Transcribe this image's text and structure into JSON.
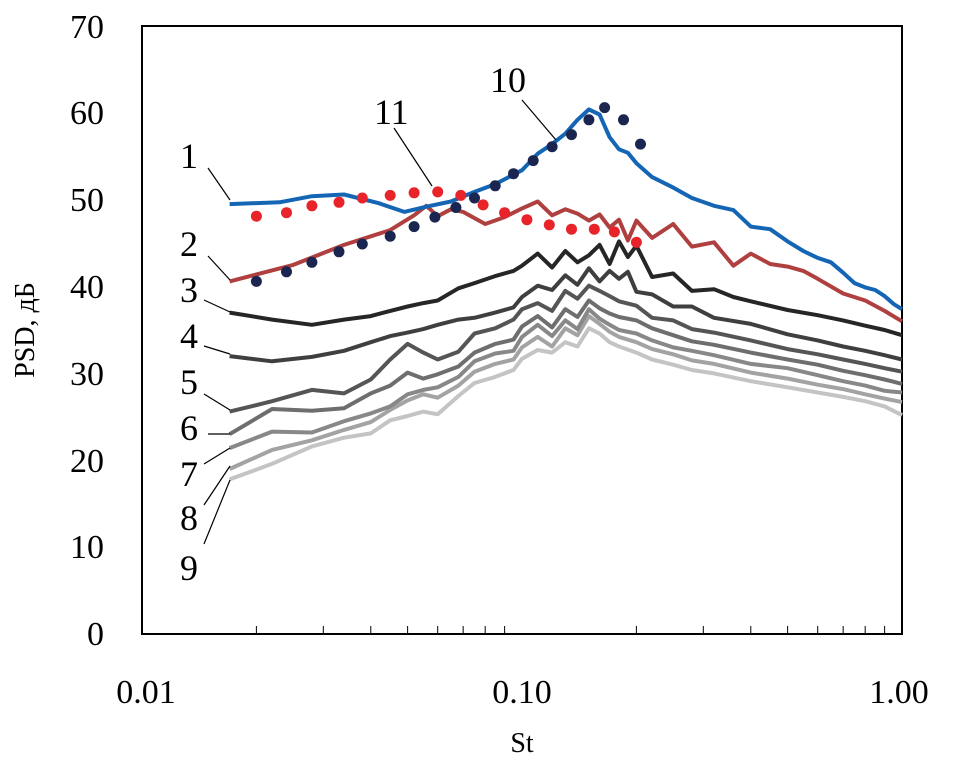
{
  "chart_data": {
    "type": "line",
    "xscale": "log",
    "xlabel": "St",
    "ylabel": "PSD, дБ",
    "xlim": [
      0.01,
      1.0
    ],
    "ylim": [
      0,
      70
    ],
    "yticks": [
      "0",
      "10",
      "20",
      "30",
      "40",
      "50",
      "60",
      "70"
    ],
    "xticks": [
      "0.01",
      "0.10",
      "1.00"
    ],
    "colors": {
      "s1": "#1565b5",
      "s2": "#b04040",
      "s3": "#262626",
      "s4": "#3f3f3f",
      "s5": "#555555",
      "s6": "#6e6e6e",
      "s7": "#888888",
      "s8": "#a3a3a3",
      "s9": "#c4c4c4",
      "m10": "#1a2550",
      "m11": "#e8242a"
    },
    "series": [
      {
        "name": "1",
        "x": [
          0.017,
          0.023,
          0.028,
          0.034,
          0.042,
          0.049,
          0.056,
          0.065,
          0.075,
          0.085,
          0.1,
          0.11,
          0.12,
          0.13,
          0.14,
          0.15,
          0.16,
          0.17,
          0.18,
          0.19,
          0.2,
          0.22,
          0.25,
          0.28,
          0.32,
          0.36,
          0.4,
          0.45,
          0.5,
          0.55,
          0.6,
          0.65,
          0.7,
          0.75,
          0.8,
          0.85,
          0.9,
          0.95,
          1.0
        ],
        "values": [
          49.5,
          49.7,
          50.4,
          50.6,
          49.6,
          48.6,
          49.2,
          49.8,
          50.9,
          51.8,
          53.4,
          55.3,
          56.4,
          57.6,
          59.2,
          60.4,
          59.8,
          57.2,
          55.8,
          55.4,
          54.2,
          52.6,
          51.4,
          50.2,
          49.3,
          48.8,
          46.9,
          46.6,
          45.2,
          44.1,
          43.3,
          42.8,
          41.6,
          40.4,
          39.9,
          39.6,
          38.9,
          38.0,
          37.4
        ]
      },
      {
        "name": "2",
        "x": [
          0.017,
          0.025,
          0.034,
          0.045,
          0.052,
          0.056,
          0.06,
          0.065,
          0.07,
          0.08,
          0.09,
          0.1,
          0.11,
          0.12,
          0.13,
          0.14,
          0.15,
          0.16,
          0.17,
          0.18,
          0.19,
          0.2,
          0.22,
          0.25,
          0.28,
          0.32,
          0.36,
          0.4,
          0.45,
          0.5,
          0.55,
          0.6,
          0.7,
          0.8,
          0.9,
          1.0
        ],
        "values": [
          40.6,
          42.5,
          44.8,
          46.5,
          48.2,
          49.3,
          48.1,
          48.9,
          48.6,
          47.2,
          48.0,
          49.0,
          49.8,
          48.2,
          48.9,
          48.4,
          47.6,
          48.3,
          46.8,
          47.7,
          45.3,
          47.6,
          45.6,
          47.2,
          44.6,
          45.1,
          42.4,
          43.8,
          42.6,
          42.3,
          41.8,
          40.9,
          39.2,
          38.4,
          37.2,
          36.0
        ]
      },
      {
        "name": "3",
        "x": [
          0.017,
          0.022,
          0.028,
          0.034,
          0.04,
          0.045,
          0.05,
          0.055,
          0.06,
          0.068,
          0.075,
          0.085,
          0.095,
          0.1,
          0.11,
          0.12,
          0.13,
          0.14,
          0.15,
          0.16,
          0.17,
          0.18,
          0.19,
          0.2,
          0.22,
          0.25,
          0.28,
          0.32,
          0.36,
          0.4,
          0.5,
          0.6,
          0.7,
          0.8,
          0.9,
          1.0
        ],
        "values": [
          37.0,
          36.2,
          35.6,
          36.2,
          36.6,
          37.2,
          37.7,
          38.1,
          38.4,
          39.8,
          40.4,
          41.2,
          41.8,
          42.4,
          43.8,
          42.2,
          44.1,
          42.8,
          43.6,
          44.8,
          42.6,
          45.2,
          43.4,
          44.7,
          41.1,
          41.5,
          39.5,
          39.7,
          38.8,
          38.3,
          37.3,
          36.7,
          36.1,
          35.5,
          35.0,
          34.4
        ]
      },
      {
        "name": "4",
        "x": [
          0.017,
          0.022,
          0.028,
          0.034,
          0.04,
          0.045,
          0.05,
          0.055,
          0.06,
          0.068,
          0.075,
          0.085,
          0.095,
          0.1,
          0.11,
          0.12,
          0.13,
          0.14,
          0.15,
          0.16,
          0.17,
          0.18,
          0.19,
          0.2,
          0.22,
          0.25,
          0.28,
          0.32,
          0.4,
          0.5,
          0.6,
          0.7,
          0.8,
          0.9,
          1.0
        ],
        "values": [
          32.0,
          31.4,
          31.9,
          32.6,
          33.6,
          34.3,
          34.7,
          35.1,
          35.6,
          36.2,
          36.4,
          37.0,
          37.6,
          38.8,
          40.1,
          39.6,
          41.3,
          40.2,
          42.1,
          40.6,
          41.8,
          40.9,
          41.7,
          39.4,
          39.1,
          37.7,
          37.7,
          36.4,
          35.7,
          34.5,
          33.8,
          33.1,
          32.6,
          32.1,
          31.6
        ]
      },
      {
        "name": "5",
        "x": [
          0.017,
          0.022,
          0.028,
          0.034,
          0.04,
          0.045,
          0.05,
          0.055,
          0.06,
          0.068,
          0.075,
          0.085,
          0.095,
          0.1,
          0.11,
          0.12,
          0.13,
          0.14,
          0.15,
          0.16,
          0.17,
          0.18,
          0.2,
          0.22,
          0.25,
          0.28,
          0.32,
          0.4,
          0.5,
          0.6,
          0.7,
          0.8,
          0.9,
          1.0
        ],
        "values": [
          25.6,
          26.8,
          28.1,
          27.7,
          29.3,
          31.6,
          33.4,
          32.4,
          31.6,
          32.5,
          34.6,
          35.2,
          36.2,
          37.4,
          38.1,
          37.2,
          39.5,
          38.6,
          40.1,
          39.5,
          38.9,
          38.3,
          37.8,
          36.4,
          36.1,
          35.1,
          34.7,
          33.8,
          32.8,
          32.2,
          31.6,
          31.1,
          30.6,
          30.2
        ]
      },
      {
        "name": "6",
        "x": [
          0.017,
          0.022,
          0.028,
          0.034,
          0.04,
          0.045,
          0.05,
          0.055,
          0.06,
          0.068,
          0.075,
          0.085,
          0.095,
          0.1,
          0.11,
          0.12,
          0.13,
          0.14,
          0.15,
          0.16,
          0.17,
          0.18,
          0.2,
          0.22,
          0.25,
          0.28,
          0.32,
          0.4,
          0.5,
          0.6,
          0.7,
          0.8,
          0.9,
          1.0
        ],
        "values": [
          23.0,
          25.9,
          25.7,
          26.0,
          27.7,
          28.6,
          30.1,
          29.4,
          29.9,
          30.8,
          32.4,
          33.4,
          33.9,
          35.4,
          36.6,
          35.3,
          37.4,
          36.5,
          38.4,
          37.5,
          36.9,
          36.5,
          36.1,
          35.2,
          34.4,
          33.7,
          33.3,
          32.4,
          31.6,
          31.0,
          30.3,
          29.8,
          29.3,
          28.8
        ]
      },
      {
        "name": "7",
        "x": [
          0.017,
          0.022,
          0.028,
          0.034,
          0.04,
          0.045,
          0.05,
          0.055,
          0.06,
          0.068,
          0.075,
          0.085,
          0.095,
          0.1,
          0.11,
          0.12,
          0.13,
          0.14,
          0.15,
          0.16,
          0.17,
          0.18,
          0.2,
          0.22,
          0.25,
          0.28,
          0.32,
          0.4,
          0.5,
          0.6,
          0.7,
          0.8,
          0.9,
          1.0
        ],
        "values": [
          21.4,
          23.3,
          23.2,
          24.5,
          25.4,
          26.2,
          27.6,
          28.1,
          28.4,
          29.6,
          31.4,
          32.3,
          32.6,
          34.2,
          35.6,
          34.3,
          36.1,
          35.1,
          37.4,
          36.3,
          35.6,
          35.0,
          34.6,
          33.8,
          33.0,
          32.6,
          32.1,
          31.1,
          30.6,
          29.8,
          29.1,
          28.6,
          28.0,
          27.8
        ]
      },
      {
        "name": "8",
        "x": [
          0.017,
          0.022,
          0.028,
          0.034,
          0.04,
          0.045,
          0.05,
          0.055,
          0.06,
          0.068,
          0.075,
          0.085,
          0.095,
          0.1,
          0.11,
          0.12,
          0.13,
          0.14,
          0.15,
          0.16,
          0.17,
          0.18,
          0.2,
          0.22,
          0.25,
          0.28,
          0.32,
          0.4,
          0.5,
          0.6,
          0.7,
          0.8,
          0.9,
          1.0
        ],
        "values": [
          19.0,
          21.2,
          22.3,
          23.5,
          24.4,
          25.8,
          26.9,
          27.6,
          27.2,
          28.6,
          30.2,
          31.1,
          31.6,
          33.0,
          34.2,
          33.1,
          35.2,
          34.4,
          36.6,
          35.7,
          34.8,
          34.2,
          33.6,
          32.8,
          32.2,
          31.5,
          31.1,
          30.1,
          29.4,
          28.7,
          28.2,
          27.6,
          27.1,
          26.7
        ]
      },
      {
        "name": "9",
        "x": [
          0.017,
          0.022,
          0.028,
          0.034,
          0.04,
          0.045,
          0.05,
          0.055,
          0.06,
          0.068,
          0.075,
          0.085,
          0.095,
          0.1,
          0.11,
          0.12,
          0.13,
          0.14,
          0.15,
          0.16,
          0.17,
          0.18,
          0.2,
          0.22,
          0.25,
          0.28,
          0.32,
          0.4,
          0.5,
          0.6,
          0.7,
          0.8,
          0.9,
          1.0
        ],
        "values": [
          17.8,
          19.6,
          21.6,
          22.6,
          23.1,
          24.6,
          25.1,
          25.6,
          25.3,
          27.4,
          28.9,
          29.6,
          30.4,
          31.7,
          32.7,
          32.4,
          33.6,
          33.1,
          35.2,
          34.6,
          33.6,
          33.1,
          32.4,
          31.6,
          31.0,
          30.4,
          30.0,
          29.1,
          28.4,
          27.8,
          27.3,
          26.8,
          26.2,
          25.2
        ]
      }
    ],
    "markers": [
      {
        "name": "10",
        "x": [
          0.02,
          0.024,
          0.028,
          0.033,
          0.038,
          0.045,
          0.052,
          0.059,
          0.067,
          0.075,
          0.085,
          0.095,
          0.107,
          0.12,
          0.135,
          0.15,
          0.165,
          0.185,
          0.205
        ],
        "values": [
          40.6,
          41.7,
          42.8,
          44.0,
          44.9,
          45.8,
          46.9,
          48.0,
          49.1,
          50.2,
          51.6,
          53.0,
          54.5,
          56.1,
          57.5,
          59.2,
          60.6,
          59.2,
          56.4
        ]
      },
      {
        "name": "11",
        "x": [
          0.02,
          0.024,
          0.028,
          0.033,
          0.038,
          0.045,
          0.052,
          0.06,
          0.069,
          0.079,
          0.09,
          0.103,
          0.118,
          0.135,
          0.155,
          0.175,
          0.2
        ],
        "values": [
          48.1,
          48.5,
          49.3,
          49.7,
          50.2,
          50.5,
          50.8,
          50.9,
          50.5,
          49.4,
          48.5,
          47.7,
          47.1,
          46.6,
          46.6,
          46.3,
          45.1
        ]
      }
    ],
    "curve_labels": [
      "1",
      "2",
      "3",
      "4",
      "5",
      "6",
      "7",
      "8",
      "9",
      "10",
      "11"
    ]
  }
}
